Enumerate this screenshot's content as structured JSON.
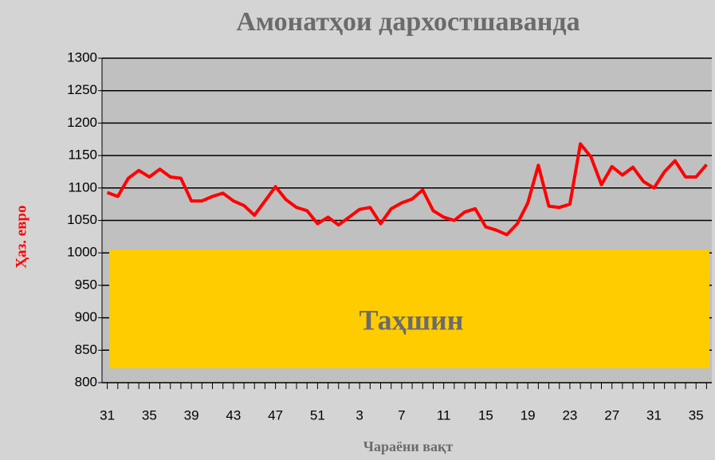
{
  "chart_data": {
    "type": "line",
    "title": "Амонатҳои дархостшаванда",
    "xlabel": "Чараёни вақт",
    "ylabel": "Ҳаз. евро",
    "annotation": "Таҳшин",
    "categories": [
      31,
      null,
      null,
      null,
      35,
      null,
      null,
      null,
      39,
      null,
      null,
      null,
      43,
      null,
      null,
      null,
      47,
      null,
      null,
      null,
      51,
      null,
      null,
      null,
      3,
      null,
      null,
      null,
      7,
      null,
      null,
      null,
      11,
      null,
      null,
      null,
      15,
      null,
      null,
      null,
      19,
      null,
      null,
      null,
      23,
      null,
      null,
      null,
      27,
      null,
      null,
      null,
      31,
      null,
      null,
      null,
      35,
      null
    ],
    "series": [
      {
        "name": "Амонатҳои дархостшаванда",
        "color": "#ff0000",
        "values": [
          1093,
          1087,
          1115,
          1127,
          1117,
          1129,
          1117,
          1115,
          1080,
          1080,
          1087,
          1092,
          1080,
          1073,
          1058,
          1080,
          1102,
          1082,
          1070,
          1065,
          1045,
          1055,
          1043,
          1055,
          1067,
          1070,
          1045,
          1068,
          1077,
          1083,
          1097,
          1065,
          1055,
          1050,
          1063,
          1068,
          1040,
          1035,
          1028,
          1045,
          1077,
          1135,
          1072,
          1070,
          1075,
          1168,
          1148,
          1105,
          1133,
          1120,
          1132,
          1110,
          1100,
          1125,
          1142,
          1117,
          1117,
          1136
        ]
      }
    ],
    "ylim": [
      800,
      1300
    ],
    "yticks": [
      800,
      850,
      900,
      950,
      1000,
      1050,
      1100,
      1150,
      1200,
      1250,
      1300
    ],
    "grid": true
  }
}
